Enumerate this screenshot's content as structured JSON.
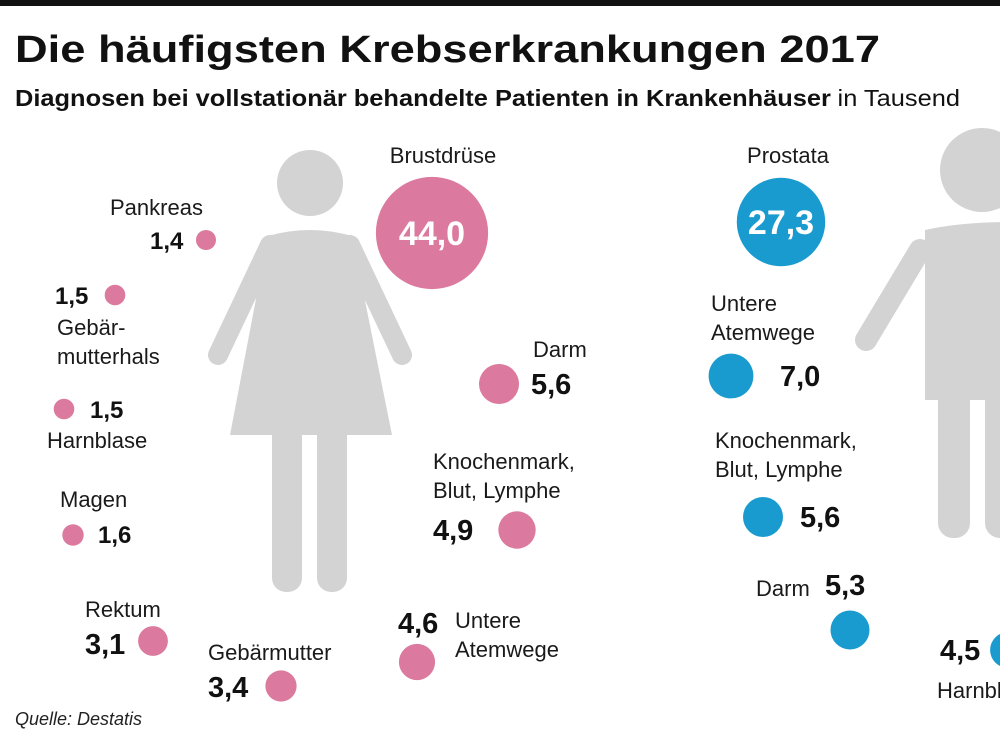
{
  "title": "Die häufigsten Krebserkrankungen 2017",
  "subtitle_bold": "Diagnosen bei vollstationär behandelte Patienten in Krankenhäuser",
  "subtitle_unit": "in Tausend",
  "source": "Quelle: Destatis",
  "colors": {
    "women": "#db7a9e",
    "men": "#1a9bcf",
    "figure": "#d3d3d3",
    "top_bar": "#111111"
  },
  "icons": {
    "women": "female-figure-icon",
    "men": "male-figure-icon"
  },
  "chart_data": {
    "type": "bubble",
    "unit": "in Tausend",
    "series": [
      {
        "group": "women",
        "points": [
          {
            "label": [
              "Brustdrüse"
            ],
            "value": 44.0,
            "display": "44,0"
          },
          {
            "label": [
              "Darm"
            ],
            "value": 5.6,
            "display": "5,6"
          },
          {
            "label": [
              "Knochenmark,",
              "Blut, Lymphe"
            ],
            "value": 4.9,
            "display": "4,9"
          },
          {
            "label": [
              "Untere",
              "Atemwege"
            ],
            "value": 4.6,
            "display": "4,6"
          },
          {
            "label": [
              "Gebärmutter"
            ],
            "value": 3.4,
            "display": "3,4"
          },
          {
            "label": [
              "Rektum"
            ],
            "value": 3.1,
            "display": "3,1"
          },
          {
            "label": [
              "Magen"
            ],
            "value": 1.6,
            "display": "1,6"
          },
          {
            "label": [
              "Harnblase"
            ],
            "value": 1.5,
            "display": "1,5"
          },
          {
            "label": [
              "Gebär-",
              "mutterhals"
            ],
            "value": 1.5,
            "display": "1,5"
          },
          {
            "label": [
              "Pankreas"
            ],
            "value": 1.4,
            "display": "1,4"
          }
        ]
      },
      {
        "group": "men",
        "points": [
          {
            "label": [
              "Prostata"
            ],
            "value": 27.3,
            "display": "27,3"
          },
          {
            "label": [
              "Untere",
              "Atemwege"
            ],
            "value": 7.0,
            "display": "7,0"
          },
          {
            "label": [
              "Knochenmark,",
              "Blut, Lymphe"
            ],
            "value": 5.6,
            "display": "5,6"
          },
          {
            "label": [
              "Darm"
            ],
            "value": 5.3,
            "display": "5,3"
          },
          {
            "label": [
              "Harnblase"
            ],
            "value": 4.5,
            "display": "4,5"
          }
        ]
      }
    ]
  }
}
